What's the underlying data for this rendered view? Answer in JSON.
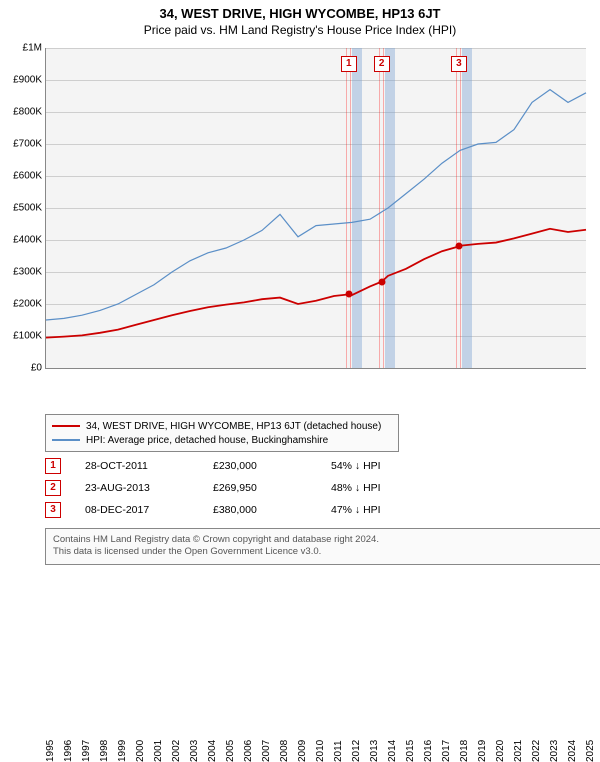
{
  "title": "34, WEST DRIVE, HIGH WYCOMBE, HP13 6JT",
  "subtitle": "Price paid vs. HM Land Registry's House Price Index (HPI)",
  "chart": {
    "type": "line",
    "background_color": "#f4f4f4",
    "grid_color": "#888888",
    "x_years": [
      1995,
      1996,
      1997,
      1998,
      1999,
      2000,
      2001,
      2002,
      2003,
      2004,
      2005,
      2006,
      2007,
      2008,
      2009,
      2010,
      2011,
      2012,
      2013,
      2014,
      2015,
      2016,
      2017,
      2018,
      2019,
      2020,
      2021,
      2022,
      2023,
      2024,
      2025
    ],
    "ylim": [
      0,
      1000000
    ],
    "ytick_step": 100000,
    "ytick_labels": [
      "£0",
      "£100K",
      "£200K",
      "£300K",
      "£400K",
      "£500K",
      "£600K",
      "£700K",
      "£800K",
      "£900K",
      "£1M"
    ],
    "series": [
      {
        "name": "property_price",
        "label": "34, WEST DRIVE, HIGH WYCOMBE, HP13 6JT (detached house)",
        "color": "#cc0000",
        "line_width": 1.8,
        "points": [
          [
            1995,
            95000
          ],
          [
            1996,
            98000
          ],
          [
            1997,
            102000
          ],
          [
            1998,
            110000
          ],
          [
            1999,
            120000
          ],
          [
            2000,
            135000
          ],
          [
            2001,
            150000
          ],
          [
            2002,
            165000
          ],
          [
            2003,
            178000
          ],
          [
            2004,
            190000
          ],
          [
            2005,
            198000
          ],
          [
            2006,
            205000
          ],
          [
            2007,
            215000
          ],
          [
            2008,
            220000
          ],
          [
            2009,
            200000
          ],
          [
            2010,
            210000
          ],
          [
            2011,
            225000
          ],
          [
            2011.82,
            230000
          ],
          [
            2012,
            228000
          ],
          [
            2013,
            255000
          ],
          [
            2013.65,
            269950
          ],
          [
            2014,
            288000
          ],
          [
            2015,
            310000
          ],
          [
            2016,
            340000
          ],
          [
            2017,
            365000
          ],
          [
            2017.94,
            380000
          ],
          [
            2018,
            382000
          ],
          [
            2019,
            388000
          ],
          [
            2020,
            392000
          ],
          [
            2021,
            405000
          ],
          [
            2022,
            420000
          ],
          [
            2023,
            435000
          ],
          [
            2024,
            425000
          ],
          [
            2025,
            432000
          ]
        ],
        "markers": [
          {
            "x": 2011.82,
            "y": 230000
          },
          {
            "x": 2013.65,
            "y": 269950
          },
          {
            "x": 2017.94,
            "y": 380000
          }
        ]
      },
      {
        "name": "hpi",
        "label": "HPI: Average price, detached house, Buckinghamshire",
        "color": "#5b8fc7",
        "line_width": 1.2,
        "points": [
          [
            1995,
            150000
          ],
          [
            1996,
            155000
          ],
          [
            1997,
            165000
          ],
          [
            1998,
            180000
          ],
          [
            1999,
            200000
          ],
          [
            2000,
            230000
          ],
          [
            2001,
            260000
          ],
          [
            2002,
            300000
          ],
          [
            2003,
            335000
          ],
          [
            2004,
            360000
          ],
          [
            2005,
            375000
          ],
          [
            2006,
            400000
          ],
          [
            2007,
            430000
          ],
          [
            2008,
            480000
          ],
          [
            2009,
            410000
          ],
          [
            2010,
            445000
          ],
          [
            2011,
            450000
          ],
          [
            2012,
            455000
          ],
          [
            2013,
            465000
          ],
          [
            2014,
            500000
          ],
          [
            2015,
            545000
          ],
          [
            2016,
            590000
          ],
          [
            2017,
            640000
          ],
          [
            2018,
            680000
          ],
          [
            2019,
            700000
          ],
          [
            2020,
            705000
          ],
          [
            2021,
            745000
          ],
          [
            2022,
            830000
          ],
          [
            2023,
            870000
          ],
          [
            2024,
            830000
          ],
          [
            2025,
            860000
          ]
        ]
      }
    ],
    "event_markers": [
      {
        "num": "1",
        "x": 2011.82,
        "box_top": 8
      },
      {
        "num": "2",
        "x": 2013.65,
        "box_top": 8
      },
      {
        "num": "3",
        "x": 2017.94,
        "box_top": 8
      }
    ]
  },
  "legend": {
    "rows": [
      {
        "color": "#cc0000",
        "label": "34, WEST DRIVE, HIGH WYCOMBE, HP13 6JT (detached house)"
      },
      {
        "color": "#5b8fc7",
        "label": "HPI: Average price, detached house, Buckinghamshire"
      }
    ]
  },
  "events": [
    {
      "num": "1",
      "date": "28-OCT-2011",
      "price": "£230,000",
      "hpi": "54% ↓ HPI"
    },
    {
      "num": "2",
      "date": "23-AUG-2013",
      "price": "£269,950",
      "hpi": "48% ↓ HPI"
    },
    {
      "num": "3",
      "date": "08-DEC-2017",
      "price": "£380,000",
      "hpi": "47% ↓ HPI"
    }
  ],
  "footer_line1": "Contains HM Land Registry data © Crown copyright and database right 2024.",
  "footer_line2": "This data is licensed under the Open Government Licence v3.0."
}
